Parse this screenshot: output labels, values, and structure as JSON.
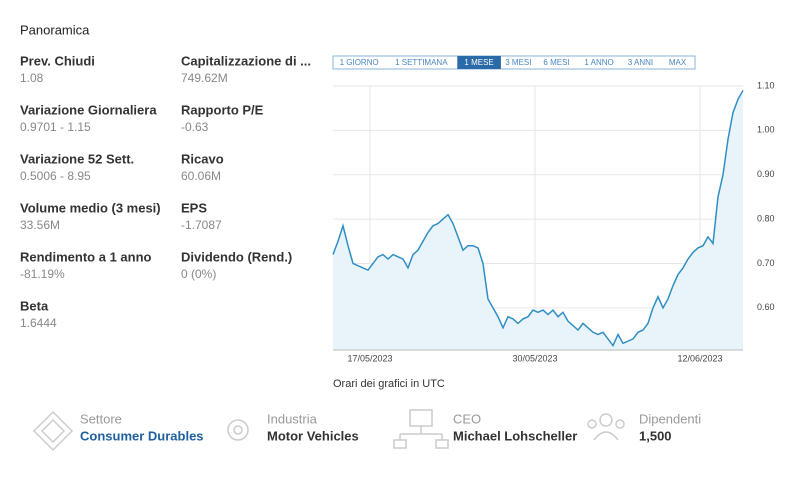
{
  "header": {
    "title": "Panoramica"
  },
  "stats": [
    {
      "label": "Prev. Chiudi",
      "value": "1.08"
    },
    {
      "label": "Capitalizzazione di ...",
      "value": "749.62M"
    },
    {
      "label": "Variazione Giornaliera",
      "value": "0.9701 - 1.15"
    },
    {
      "label": "Rapporto P/E",
      "value": "-0.63"
    },
    {
      "label": "Variazione 52 Sett.",
      "value": "0.5006 - 8.95"
    },
    {
      "label": "Ricavo",
      "value": "60.06M"
    },
    {
      "label": "Volume medio (3 mesi)",
      "value": "33.56M"
    },
    {
      "label": "EPS",
      "value": "-1.7087"
    },
    {
      "label": "Rendimento a 1 anno",
      "value": "-81.19%"
    },
    {
      "label": "Dividendo (Rend.)",
      "value": "0 (0%)"
    },
    {
      "label": "Beta",
      "value": "1.6444"
    }
  ],
  "ranges": {
    "options": [
      "1 GIORNO",
      "1 SETTIMANA",
      "1 MESE",
      "3 MESI",
      "6 MESI",
      "1 ANNO",
      "3 ANNI",
      "MAX"
    ],
    "active": "1 MESE"
  },
  "chart_data": {
    "type": "area",
    "color": "#2f8fc4",
    "values": [
      0.72,
      0.75,
      0.785,
      0.74,
      0.7,
      0.695,
      0.69,
      0.685,
      0.7,
      0.715,
      0.72,
      0.71,
      0.72,
      0.715,
      0.71,
      0.69,
      0.72,
      0.73,
      0.75,
      0.77,
      0.785,
      0.79,
      0.8,
      0.81,
      0.79,
      0.76,
      0.73,
      0.74,
      0.74,
      0.735,
      0.7,
      0.62,
      0.6,
      0.58,
      0.555,
      0.58,
      0.575,
      0.565,
      0.575,
      0.58,
      0.595,
      0.59,
      0.595,
      0.585,
      0.595,
      0.58,
      0.59,
      0.57,
      0.56,
      0.55,
      0.565,
      0.555,
      0.545,
      0.54,
      0.545,
      0.53,
      0.515,
      0.54,
      0.52,
      0.525,
      0.53,
      0.545,
      0.55,
      0.565,
      0.6,
      0.625,
      0.6,
      0.62,
      0.65,
      0.675,
      0.69,
      0.71,
      0.725,
      0.735,
      0.74,
      0.76,
      0.745,
      0.85,
      0.9,
      0.98,
      1.04,
      1.07,
      1.09
    ],
    "xlim": [
      0,
      82
    ],
    "xticks": [
      {
        "value": 7.4,
        "label": "17/05/2023"
      },
      {
        "value": 40.4,
        "label": "30/05/2023"
      },
      {
        "value": 73.4,
        "label": "12/06/2023"
      }
    ],
    "ylim": [
      0.505,
      1.1
    ],
    "yticks": [
      {
        "value": 0.6,
        "label": "0.60"
      },
      {
        "value": 0.7,
        "label": "0.70"
      },
      {
        "value": 0.8,
        "label": "0.80"
      },
      {
        "value": 0.9,
        "label": "0.90"
      },
      {
        "value": 1.0,
        "label": "1.00"
      },
      {
        "value": 1.1,
        "label": "1.10"
      }
    ],
    "grid": true,
    "note": "Orari dei grafici in UTC"
  },
  "profile": [
    {
      "label": "Settore",
      "value": "Consumer Durables"
    },
    {
      "label": "Industria",
      "value": "Motor Vehicles"
    },
    {
      "label": "CEO",
      "value": "Michael Lohscheller"
    },
    {
      "label": "Dipendenti",
      "value": "1,500"
    }
  ]
}
